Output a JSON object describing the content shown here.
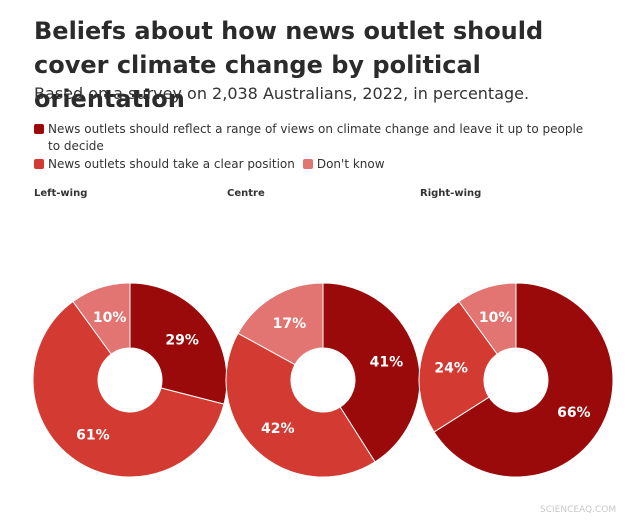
{
  "header": {
    "title": "Beliefs about how news outlet should cover climate change by political orientation",
    "subtitle": "Based on a survey on 2,038 Australians, 2022, in percentage."
  },
  "legend": {
    "items": [
      {
        "name": "News outlets should reflect a range of views on climate change and leave it up to people to decide",
        "color": "#9b0a0a"
      },
      {
        "name": "News outlets should take a clear position",
        "color": "#d33a31"
      },
      {
        "name": "Don't know",
        "color": "#e27471"
      }
    ]
  },
  "chart_data": [
    {
      "type": "pie",
      "title": "Left-wing",
      "values": [
        29,
        61,
        10
      ],
      "value_labels": [
        "29%",
        "61%",
        "10%"
      ]
    },
    {
      "type": "pie",
      "title": "Centre",
      "values": [
        41,
        42,
        17
      ],
      "value_labels": [
        "41%",
        "42%",
        "17%"
      ]
    },
    {
      "type": "pie",
      "title": "Right-wing",
      "values": [
        66,
        24,
        10
      ],
      "value_labels": [
        "66%",
        "24%",
        "10%"
      ]
    }
  ],
  "watermark": "SCIENCEAQ.COM"
}
